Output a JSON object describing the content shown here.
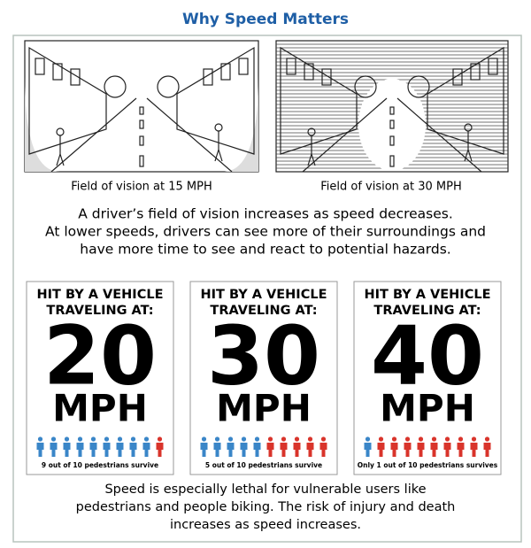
{
  "header": {
    "title": "Why Speed Matters"
  },
  "vision": {
    "captions": [
      "Field of vision at 15 MPH",
      "Field of vision at 30 MPH"
    ],
    "text": [
      "A driver’s field of vision increases as speed decreases.",
      "At lower speeds, drivers can see more of their surroundings and",
      "have more time to see and react to potential hazards."
    ]
  },
  "panels": [
    {
      "heading": [
        "HIT BY A VEHICLE",
        "TRAVELING AT:"
      ],
      "speed": "20",
      "unit": "MPH",
      "caption": "9 out of 10 pedestrians survive",
      "survivors": 9,
      "total": 10
    },
    {
      "heading": [
        "HIT BY A VEHICLE",
        "TRAVELING AT:"
      ],
      "speed": "30",
      "unit": "MPH",
      "caption": "5 out of 10 pedestrians survive",
      "survivors": 5,
      "total": 10
    },
    {
      "heading": [
        "HIT BY A VEHICLE",
        "TRAVELING AT:"
      ],
      "speed": "40",
      "unit": "MPH",
      "caption": "Only 1 out of 10 pedestrians survives",
      "survivors": 1,
      "total": 10
    }
  ],
  "footer": {
    "text": [
      "Speed is especially lethal for vulnerable users like",
      "pedestrians and people biking.  The risk of injury and death",
      "increases as speed increases."
    ]
  }
}
